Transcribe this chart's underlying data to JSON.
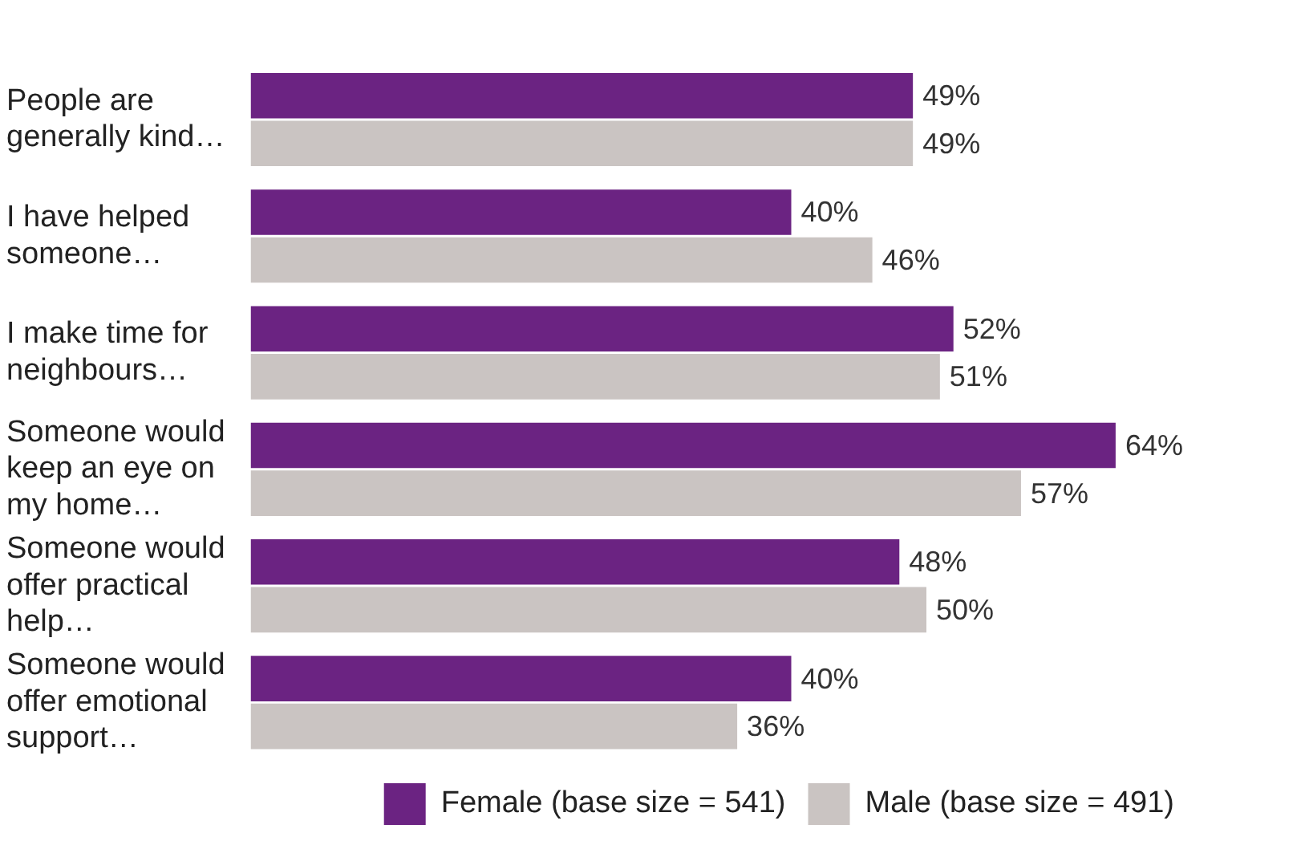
{
  "chart_data": {
    "type": "bar",
    "orientation": "horizontal",
    "legend": "bottom right",
    "tick_labels": "y",
    "categories": [
      "People are generally kind…",
      "I have helped someone…",
      "I make time for neighbours…",
      "Someone would keep an eye on my home…",
      "Someone would offer practical help…",
      "Someone would offer emotional support…"
    ],
    "series": [
      {
        "name": "Female (base size = 541)",
        "color": "#6b2382",
        "values": [
          49,
          40,
          52,
          64,
          48,
          40
        ],
        "value_labels": [
          "49%",
          "40%",
          "52%",
          "64%",
          "48%",
          "40%"
        ]
      },
      {
        "name": "Male (base size = 491)",
        "color": "#cac4c2",
        "values": [
          49,
          46,
          51,
          57,
          50,
          36
        ],
        "value_labels": [
          "49%",
          "46%",
          "51%",
          "57%",
          "50%",
          "36%"
        ]
      }
    ]
  }
}
